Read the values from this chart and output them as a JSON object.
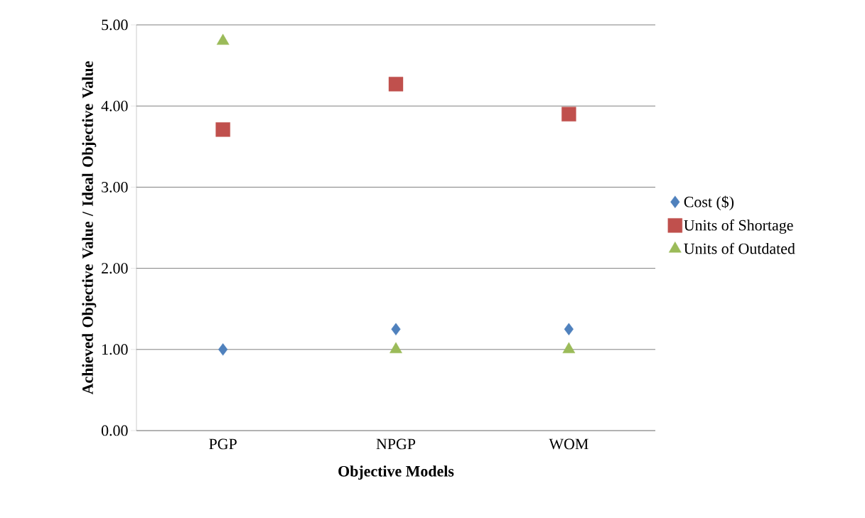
{
  "chart_data": {
    "type": "scatter",
    "xlabel": "Objective Models",
    "ylabel": "Achieved Objective Value / Ideal Objective Value",
    "categories": [
      "PGP",
      "NPGP",
      "WOM"
    ],
    "series": [
      {
        "name": "Cost ($)",
        "color": "#4f81bd",
        "marker": "diamond",
        "values": [
          1.0,
          1.25,
          1.25
        ]
      },
      {
        "name": "Units of Shortage",
        "color": "#c0504d",
        "marker": "square",
        "values": [
          3.71,
          4.27,
          3.9
        ]
      },
      {
        "name": "Units of Outdated",
        "color": "#9bbb59",
        "marker": "triangle",
        "values": [
          4.8,
          1.0,
          1.0
        ]
      }
    ],
    "ylim": [
      0,
      5
    ],
    "yticks": [
      {
        "value": 0,
        "label": "0.00"
      },
      {
        "value": 1,
        "label": "1.00"
      },
      {
        "value": 2,
        "label": "2.00"
      },
      {
        "value": 3,
        "label": "3.00"
      },
      {
        "value": 4,
        "label": "4.00"
      },
      {
        "value": 5,
        "label": "5.00"
      }
    ],
    "grid": "y",
    "legend": "right"
  }
}
